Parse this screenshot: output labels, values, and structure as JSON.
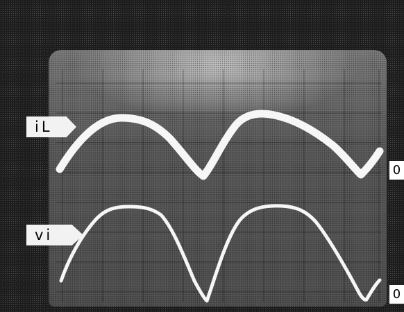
{
  "channels": [
    {
      "label": "iL",
      "zero_marker": "0",
      "color": "#ffffff"
    },
    {
      "label": "vi",
      "zero_marker": "0",
      "color": "#ffffff"
    }
  ],
  "screen": {
    "graticule": true,
    "colors": {
      "screen": "#5a5a5a",
      "trace": "#ffffff",
      "surround": "#1c1c1c"
    }
  }
}
